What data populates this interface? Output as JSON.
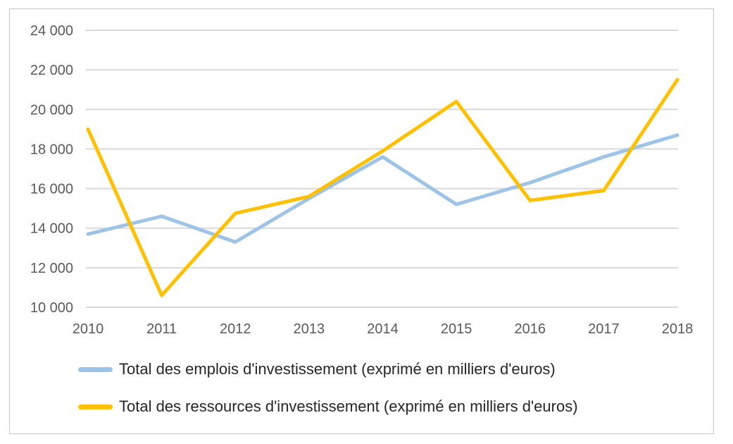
{
  "chart_data": {
    "type": "line",
    "title": "",
    "x_categories": [
      "2010",
      "2011",
      "2012",
      "2013",
      "2014",
      "2015",
      "2016",
      "2017",
      "2018"
    ],
    "series": [
      {
        "name": "Total des emplois d'investissement (exprimé en milliers d'euros)",
        "color": "#9DC3E6",
        "values": [
          13700,
          14600,
          13300,
          15500,
          17600,
          15200,
          16300,
          17600,
          18700
        ]
      },
      {
        "name": "Total des ressources d'investissement (exprimé en milliers d'euros)",
        "color": "#FFC000",
        "values": [
          19000,
          10600,
          14750,
          15600,
          17900,
          20400,
          15400,
          15900,
          21500
        ]
      }
    ],
    "ylim": [
      10000,
      24000
    ],
    "yticks": [
      {
        "value": 10000,
        "label": "10 000"
      },
      {
        "value": 12000,
        "label": "12 000"
      },
      {
        "value": 14000,
        "label": "14 000"
      },
      {
        "value": 16000,
        "label": "16 000"
      },
      {
        "value": 18000,
        "label": "18 000"
      },
      {
        "value": 20000,
        "label": "20 000"
      },
      {
        "value": 22000,
        "label": "22 000"
      },
      {
        "value": 24000,
        "label": "24 000"
      }
    ],
    "grid": true,
    "gridline_color": "#D9D9D9",
    "axis_label_color": "#595959",
    "legend_text_color": "#262626",
    "legend_position": "bottom-left",
    "xlabel": "",
    "ylabel": ""
  }
}
